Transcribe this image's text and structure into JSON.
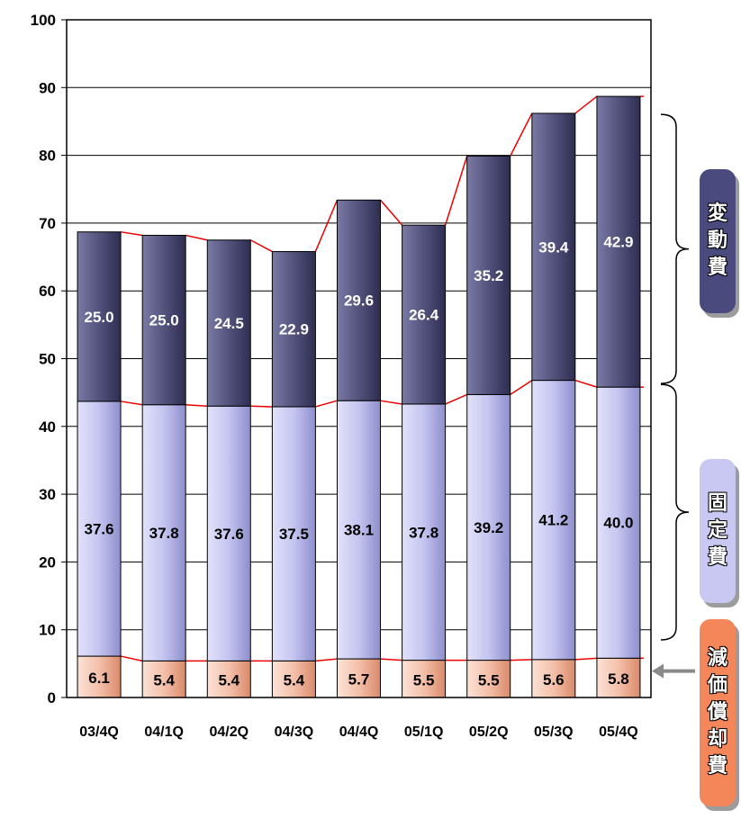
{
  "chart_data": {
    "type": "bar",
    "stacked": true,
    "categories": [
      "03/4Q",
      "04/1Q",
      "04/2Q",
      "04/3Q",
      "04/4Q",
      "05/1Q",
      "05/2Q",
      "05/3Q",
      "05/4Q"
    ],
    "series": [
      {
        "values": [
          6.1,
          5.4,
          5.4,
          5.4,
          5.7,
          5.5,
          5.5,
          5.6,
          5.8
        ],
        "color": "#f4c4b0",
        "label_color": "#000000"
      },
      {
        "values": [
          37.6,
          37.8,
          37.6,
          37.5,
          38.1,
          37.8,
          39.2,
          41.2,
          40.0
        ],
        "color": "#c6c6f2",
        "label_color": "#000000"
      },
      {
        "values": [
          25.0,
          25.0,
          24.5,
          22.9,
          29.6,
          26.4,
          35.2,
          39.4,
          42.9
        ],
        "color": "#55557e",
        "label_color": "#ffffff"
      }
    ],
    "ylim": [
      0,
      100
    ],
    "yticks": [
      0,
      10,
      20,
      30,
      40,
      50,
      60,
      70,
      80,
      90,
      100
    ],
    "grid": true,
    "connector_color": "#ee0000"
  },
  "legend": {
    "variable": {
      "chars": [
        "変",
        "動",
        "費"
      ],
      "color": "#4a4a7e"
    },
    "fixed": {
      "chars": [
        "固",
        "定",
        "費"
      ],
      "color": "#c8c8f2"
    },
    "depreciation": {
      "chars": [
        "減",
        "価",
        "償",
        "却",
        "費"
      ],
      "color": "#f4875a"
    }
  }
}
